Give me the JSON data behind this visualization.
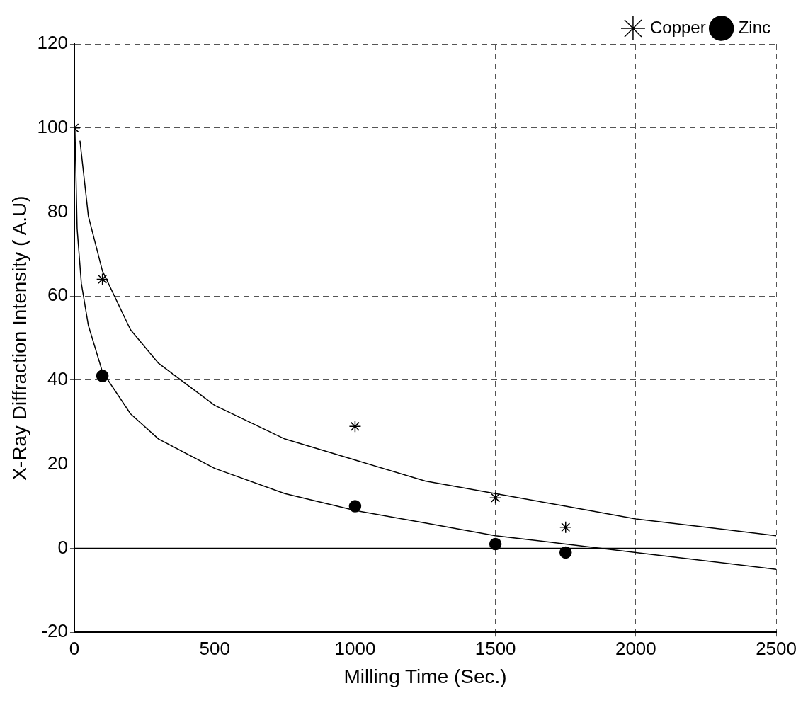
{
  "chart_data": {
    "type": "scatter",
    "xlabel": "Milling Time (Sec.)",
    "ylabel": "X-Ray Diffraction Intensity ( A.U)",
    "xlim": [
      0,
      2500
    ],
    "xticks": [
      0,
      500,
      1000,
      1500,
      2000,
      2500
    ],
    "ylim": [
      -20,
      120
    ],
    "yticks": [
      -20,
      0,
      20,
      40,
      60,
      80,
      100,
      120
    ],
    "grid": true,
    "legend": "top right",
    "ref_lines": [
      {
        "axis": "y",
        "value": 0,
        "color": "#000000",
        "line_style": "solid"
      }
    ],
    "series": [
      {
        "name": "Copper",
        "type": "scatter",
        "marker": "cross",
        "color": "#000000",
        "x": [
          0,
          100,
          1000,
          1500,
          1750
        ],
        "values": [
          100,
          64,
          29,
          12,
          5
        ]
      },
      {
        "name": "Zinc",
        "type": "scatter",
        "marker": "circle",
        "color": "#000000",
        "x": [
          100,
          1000,
          1500,
          1750
        ],
        "values": [
          41,
          10,
          1,
          -1
        ]
      },
      {
        "type": "line",
        "marker": "none",
        "line_style": "solid",
        "color": "#000000",
        "x": [
          20,
          50,
          100,
          200,
          300,
          500,
          750,
          1000,
          1250,
          1500,
          1750,
          2000,
          2250,
          2500
        ],
        "values": [
          97,
          79,
          66,
          52,
          44,
          34,
          26,
          21,
          16,
          13,
          10,
          7,
          5,
          3
        ]
      },
      {
        "type": "line",
        "marker": "none",
        "line_style": "solid",
        "color": "#000000",
        "x": [
          2,
          10,
          25,
          50,
          100,
          200,
          300,
          500,
          750,
          1000,
          1250,
          1500,
          1750,
          2000,
          2250,
          2500
        ],
        "values": [
          100,
          76,
          63,
          53,
          42,
          32,
          26,
          19,
          13,
          9,
          6,
          3,
          1,
          -1,
          -3,
          -5
        ]
      }
    ]
  }
}
